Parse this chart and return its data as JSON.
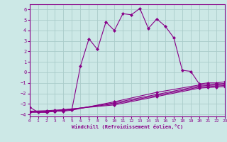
{
  "xlabel": "Windchill (Refroidissement éolien,°C)",
  "bg_color": "#cce8e6",
  "grid_color": "#aaccca",
  "line_color": "#880088",
  "xlim": [
    0,
    23
  ],
  "ylim": [
    -4.2,
    6.5
  ],
  "xticks": [
    0,
    1,
    2,
    3,
    4,
    5,
    6,
    7,
    8,
    9,
    10,
    11,
    12,
    13,
    14,
    15,
    16,
    17,
    18,
    19,
    20,
    21,
    22,
    23
  ],
  "yticks": [
    -4,
    -3,
    -2,
    -1,
    0,
    1,
    2,
    3,
    4,
    5,
    6
  ],
  "series": [
    [
      0,
      -3.3
    ],
    [
      1,
      -3.8
    ],
    [
      2,
      -3.8
    ],
    [
      3,
      -3.7
    ],
    [
      4,
      -3.6
    ],
    [
      5,
      -3.5
    ],
    [
      6,
      0.6
    ],
    [
      7,
      3.2
    ],
    [
      8,
      2.2
    ],
    [
      9,
      4.8
    ],
    [
      10,
      4.0
    ],
    [
      11,
      5.6
    ],
    [
      12,
      5.5
    ],
    [
      13,
      6.1
    ],
    [
      14,
      4.2
    ],
    [
      15,
      5.1
    ],
    [
      16,
      4.4
    ],
    [
      17,
      3.3
    ],
    [
      18,
      0.2
    ],
    [
      19,
      0.1
    ],
    [
      20,
      -1.1
    ],
    [
      21,
      -1.0
    ],
    [
      22,
      -1.0
    ],
    [
      23,
      -0.9
    ]
  ],
  "flat_lines": [
    {
      "points": [
        [
          0,
          -3.8
        ],
        [
          2,
          -3.8
        ],
        [
          3,
          -3.7
        ],
        [
          4,
          -3.7
        ],
        [
          5,
          -3.6
        ],
        [
          10,
          -2.8
        ],
        [
          15,
          -1.9
        ],
        [
          20,
          -1.2
        ],
        [
          21,
          -1.15
        ],
        [
          22,
          -1.1
        ],
        [
          23,
          -1.05
        ]
      ]
    },
    {
      "points": [
        [
          0,
          -3.8
        ],
        [
          2,
          -3.75
        ],
        [
          3,
          -3.7
        ],
        [
          4,
          -3.65
        ],
        [
          10,
          -2.9
        ],
        [
          15,
          -2.1
        ],
        [
          20,
          -1.3
        ],
        [
          21,
          -1.25
        ],
        [
          22,
          -1.2
        ],
        [
          23,
          -1.15
        ]
      ]
    },
    {
      "points": [
        [
          0,
          -3.75
        ],
        [
          2,
          -3.7
        ],
        [
          3,
          -3.65
        ],
        [
          4,
          -3.6
        ],
        [
          10,
          -3.0
        ],
        [
          15,
          -2.2
        ],
        [
          20,
          -1.4
        ],
        [
          21,
          -1.35
        ],
        [
          22,
          -1.3
        ],
        [
          23,
          -1.25
        ]
      ]
    },
    {
      "points": [
        [
          0,
          -3.7
        ],
        [
          2,
          -3.65
        ],
        [
          3,
          -3.6
        ],
        [
          4,
          -3.55
        ],
        [
          10,
          -3.1
        ],
        [
          15,
          -2.3
        ],
        [
          20,
          -1.5
        ],
        [
          21,
          -1.45
        ],
        [
          22,
          -1.4
        ],
        [
          23,
          -1.35
        ]
      ]
    }
  ]
}
